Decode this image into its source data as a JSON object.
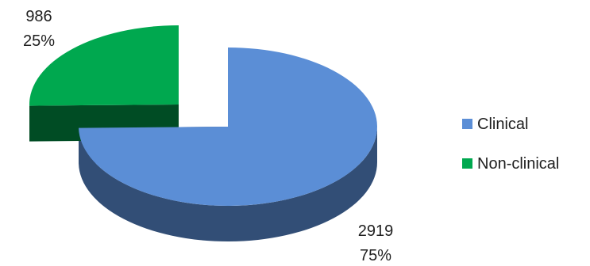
{
  "chart_data": {
    "type": "pie",
    "style": "3d-exploded",
    "title": "",
    "categories": [
      "Clinical",
      "Non-clinical"
    ],
    "values": [
      2919,
      986
    ],
    "percents": [
      "75%",
      "25%"
    ],
    "colors": [
      "#5b8ed6",
      "#00a84f"
    ],
    "legend_position": "right"
  }
}
